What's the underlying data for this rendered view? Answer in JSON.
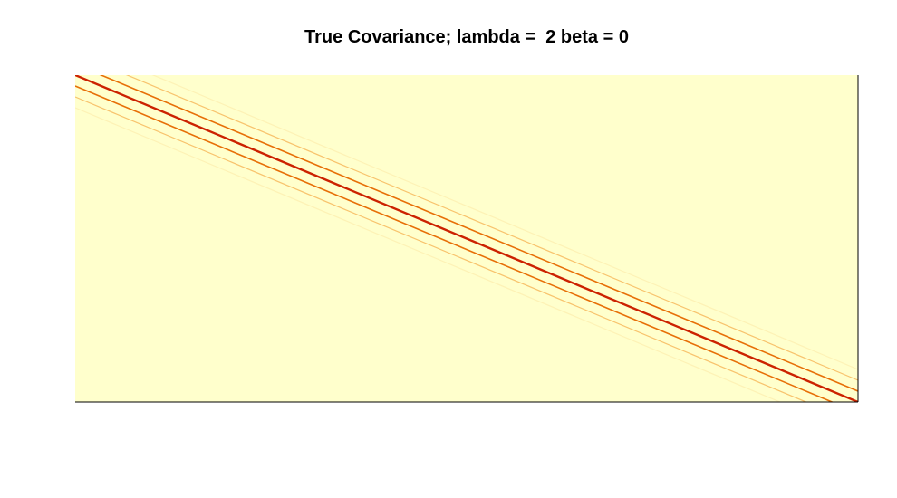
{
  "chart_data": {
    "type": "heatmap",
    "title": "True Covariance; lambda =  2 beta = 0",
    "xlabel": "",
    "ylabel": "",
    "axes_ticks": "none",
    "grid": false,
    "legend": "none",
    "background_color": "#ffffcc",
    "diagonal_bands": [
      {
        "offset": 0,
        "intensity": 1.0,
        "color": "#cc2200"
      },
      {
        "offset": 1,
        "intensity": 0.62,
        "color": "#e66a00"
      },
      {
        "offset": 2,
        "intensity": 0.33,
        "color": "#f4a640"
      },
      {
        "offset": 3,
        "intensity": 0.16,
        "color": "#fbe6a0"
      }
    ]
  }
}
